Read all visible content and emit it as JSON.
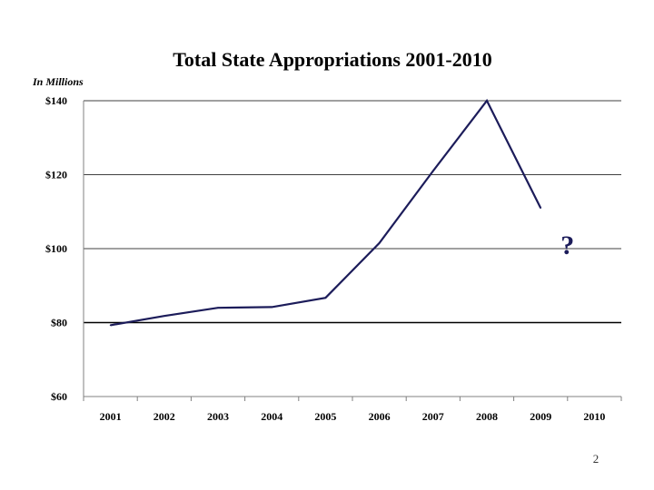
{
  "page_number": "2",
  "chart_data": {
    "type": "line",
    "title": "Total State Appropriations  2001-2010",
    "units_label": "In Millions",
    "xlabel": "",
    "ylabel": "",
    "categories": [
      "2001",
      "2002",
      "2003",
      "2004",
      "2005",
      "2006",
      "2007",
      "2008",
      "2009",
      "2010"
    ],
    "series": [
      {
        "values": [
          79.3,
          81.8,
          84.0,
          84.2,
          86.7,
          101.5,
          121.0,
          140.0,
          111.0,
          null
        ]
      }
    ],
    "ylim": [
      60,
      140
    ],
    "yticks": [
      60,
      80,
      100,
      120,
      140
    ],
    "ytick_labels": [
      "$60",
      "$80",
      "$100",
      "$120",
      "$140"
    ],
    "highlight_gridline": 80,
    "grid": true,
    "legend": "none",
    "annotations": [
      {
        "text": "?",
        "x": "2009.5",
        "y": 101
      }
    ],
    "colors": {
      "line": "#1c1c5a",
      "annotation": "#1c1c5a",
      "grid": "#000000",
      "axis": "#808080"
    }
  }
}
